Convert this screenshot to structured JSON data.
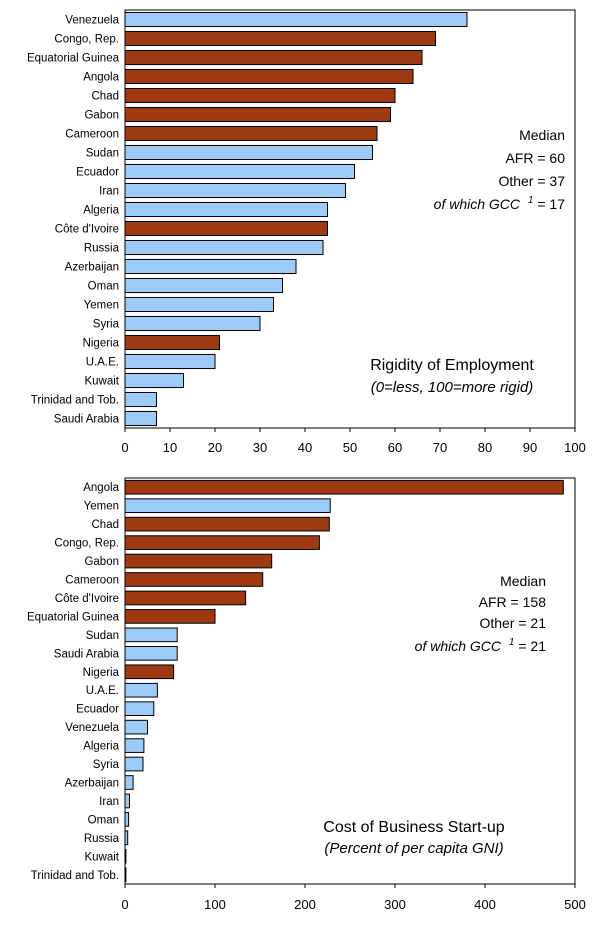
{
  "chart_data": [
    {
      "type": "bar",
      "orientation": "horizontal",
      "title": "Rigidity of Employment",
      "subtitle": "(0=less, 100=more rigid)",
      "xlim": [
        0,
        100
      ],
      "xticks": [
        0,
        10,
        20,
        30,
        40,
        50,
        60,
        70,
        80,
        90,
        100
      ],
      "colors": {
        "AFR": "#9e3a12",
        "Other": "#9ccbf7"
      },
      "categories": [
        "Venezuela",
        "Congo, Rep.",
        "Equatorial Guinea",
        "Angola",
        "Chad",
        "Gabon",
        "Cameroon",
        "Sudan",
        "Ecuador",
        "Iran",
        "Algeria",
        "Côte d'Ivoire",
        "Russia",
        "Azerbaijan",
        "Oman",
        "Yemen",
        "Syria",
        "Nigeria",
        "U.A.E.",
        "Kuwait",
        "Trinidad and Tob.",
        "Saudi Arabia"
      ],
      "values": [
        76,
        69,
        66,
        64,
        60,
        59,
        56,
        55,
        51,
        49,
        45,
        45,
        44,
        38,
        35,
        33,
        30,
        21,
        20,
        13,
        7,
        7
      ],
      "groups": [
        "Other",
        "AFR",
        "AFR",
        "AFR",
        "AFR",
        "AFR",
        "AFR",
        "Other",
        "Other",
        "Other",
        "Other",
        "AFR",
        "Other",
        "Other",
        "Other",
        "Other",
        "Other",
        "AFR",
        "Other",
        "Other",
        "Other",
        "Other"
      ],
      "annotation": {
        "heading": "Median",
        "afr": "AFR = 60",
        "other": "Other = 37",
        "gcc_prefix": "of which GCC",
        "gcc_sup": "1",
        "gcc_value": " = 17"
      }
    },
    {
      "type": "bar",
      "orientation": "horizontal",
      "title": "Cost of Business Start-up",
      "subtitle": "(Percent of per capita GNI)",
      "xlim": [
        0,
        500
      ],
      "xticks": [
        0,
        100,
        200,
        300,
        400,
        500
      ],
      "colors": {
        "AFR": "#9e3a12",
        "Other": "#9ccbf7"
      },
      "categories": [
        "Angola",
        "Yemen",
        "Chad",
        "Congo, Rep.",
        "Gabon",
        "Cameroon",
        "Côte d'Ivoire",
        "Equatorial Guinea",
        "Sudan",
        "Saudi Arabia",
        "Nigeria",
        "U.A.E.",
        "Ecuador",
        "Venezuela",
        "Algeria",
        "Syria",
        "Azerbaijan",
        "Iran",
        "Oman",
        "Russia",
        "Kuwait",
        "Trinidad and Tob."
      ],
      "values": [
        487,
        228,
        227,
        216,
        163,
        153,
        134,
        100,
        58,
        58,
        54,
        36,
        32,
        25,
        21,
        20,
        9,
        5,
        4,
        3,
        1,
        1
      ],
      "groups": [
        "AFR",
        "Other",
        "AFR",
        "AFR",
        "AFR",
        "AFR",
        "AFR",
        "AFR",
        "Other",
        "Other",
        "AFR",
        "Other",
        "Other",
        "Other",
        "Other",
        "Other",
        "Other",
        "Other",
        "Other",
        "Other",
        "Other",
        "Other"
      ],
      "annotation": {
        "heading": "Median",
        "afr": "AFR = 158",
        "other": "Other =  21",
        "gcc_prefix": "of which GCC",
        "gcc_sup": "1",
        "gcc_value": " = 21"
      }
    }
  ]
}
